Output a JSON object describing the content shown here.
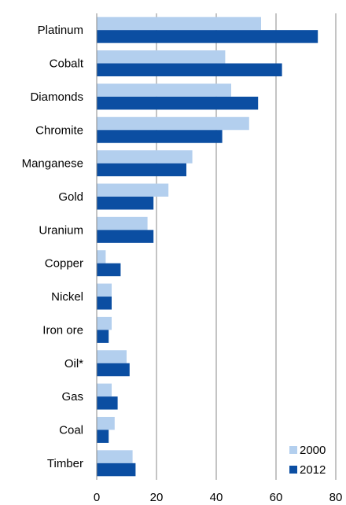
{
  "chart_data": {
    "type": "bar",
    "orientation": "horizontal",
    "categories": [
      "Platinum",
      "Cobalt",
      "Diamonds",
      "Chromite",
      "Manganese",
      "Gold",
      "Uranium",
      "Copper",
      "Nickel",
      "Iron ore",
      "Oil*",
      "Gas",
      "Coal",
      "Timber"
    ],
    "series": [
      {
        "name": "2000",
        "color": "#b3cfee",
        "values": [
          55,
          43,
          45,
          51,
          32,
          24,
          17,
          3,
          5,
          5,
          10,
          5,
          6,
          12
        ]
      },
      {
        "name": "2012",
        "color": "#0b4ea2",
        "values": [
          74,
          62,
          54,
          42,
          30,
          19,
          19,
          8,
          5,
          4,
          11,
          7,
          4,
          13
        ]
      }
    ],
    "xlim": [
      0,
      80
    ],
    "xticks": [
      "0",
      "20",
      "40",
      "60",
      "80"
    ],
    "grid": "vertical",
    "legend": "bottom-right",
    "title": "",
    "xlabel": "",
    "ylabel": ""
  }
}
